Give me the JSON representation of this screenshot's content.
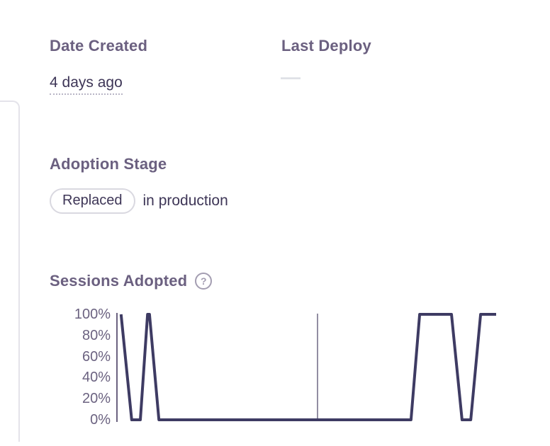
{
  "meta": {
    "date_created": {
      "label": "Date Created",
      "value": "4 days ago"
    },
    "last_deploy": {
      "label": "Last Deploy",
      "empty_value": "—"
    }
  },
  "adoption": {
    "label": "Adoption Stage",
    "stage": "Replaced",
    "context": "in production"
  },
  "sessions": {
    "label": "Sessions Adopted",
    "help_glyph": "?"
  },
  "colors": {
    "heading": "#6b6080",
    "body_text": "#3e3657",
    "line": "#3e3b63",
    "marker_line": "#6f6984",
    "axis": "#6b6280",
    "badge_border": "#d9d8e0",
    "card_border": "#e4e3ea",
    "placeholder_dash": "#dfe1e7"
  },
  "chart_data": {
    "type": "line",
    "title": "Sessions Adopted",
    "xlabel": "",
    "ylabel": "",
    "ylim": [
      0,
      100
    ],
    "grid": false,
    "legend": "none",
    "y_ticks": [
      "100%",
      "80%",
      "60%",
      "40%",
      "20%",
      "0%"
    ],
    "series": [
      {
        "name": "sessions_adopted_pct",
        "points_x_pct_value": [
          [
            0.9,
            100
          ],
          [
            3.7,
            0
          ],
          [
            6.0,
            0
          ],
          [
            7.9,
            100
          ],
          [
            8.4,
            100
          ],
          [
            10.9,
            0
          ],
          [
            77.5,
            0
          ],
          [
            79.8,
            100
          ],
          [
            88.2,
            100
          ],
          [
            91.0,
            0
          ],
          [
            93.3,
            0
          ],
          [
            95.9,
            100
          ],
          [
            100,
            100
          ]
        ]
      }
    ],
    "marker_x_pct": 52.8
  }
}
